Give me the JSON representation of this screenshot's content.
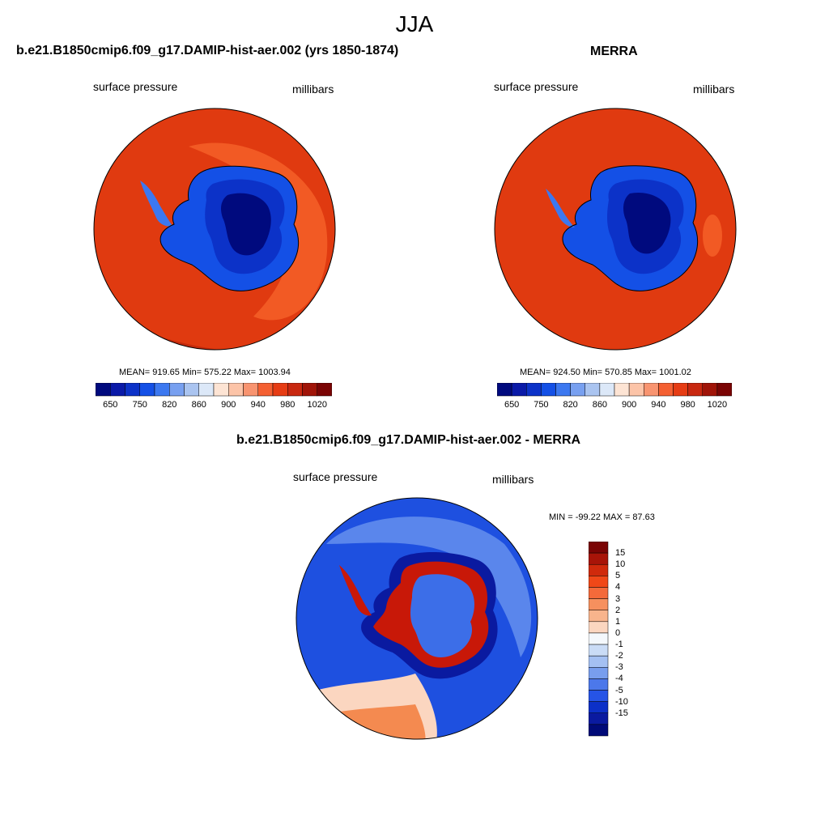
{
  "season": "JJA",
  "variable": "surface pressure",
  "units": "millibars",
  "panels": {
    "model": {
      "title": "b.e21.B1850cmip6.f09_g17.DAMIP-hist-aer.002 (yrs 1850-1874)",
      "stats": "MEAN= 919.65  Min= 575.22  Max= 1003.94"
    },
    "obs": {
      "title": "MERRA",
      "stats": "MEAN= 924.50  Min= 570.85  Max= 1001.02"
    },
    "diff": {
      "title": "b.e21.B1850cmip6.f09_g17.DAMIP-hist-aer.002 - MERRA",
      "stats": "MIN = -99.22 MAX =  87.63"
    }
  },
  "abs_colorbar": {
    "colors": [
      "#000a7e",
      "#0a1aa8",
      "#0c32c8",
      "#1450e6",
      "#3c78f0",
      "#78a0f0",
      "#aac4f0",
      "#dce8f8",
      "#fde4d4",
      "#fcc4a8",
      "#f89470",
      "#f46032",
      "#e63c14",
      "#c82810",
      "#a01408",
      "#7a0404"
    ],
    "tick_labels": [
      "650",
      "750",
      "820",
      "860",
      "900",
      "940",
      "980",
      "1020"
    ]
  },
  "diff_colorbar": {
    "colors": [
      "#7a0404",
      "#a81408",
      "#d02a0c",
      "#f04818",
      "#f46a3a",
      "#f6905e",
      "#f8b48c",
      "#fbd6c0",
      "#f4f8fc",
      "#cadcf6",
      "#a4c0f2",
      "#789eee",
      "#4c78ea",
      "#2654e6",
      "#0c30c8",
      "#0a1aa0",
      "#000a78"
    ],
    "tick_labels": [
      "15",
      "10",
      "5",
      "4",
      "3",
      "2",
      "1",
      "0",
      "-1",
      "-2",
      "-3",
      "-4",
      "-5",
      "-10",
      "-15"
    ]
  },
  "map_colors": {
    "ocean_deep": "#e03a10",
    "ocean_light": "#f25a24",
    "ocean_dark": "#c42a0c",
    "ice_outer": "#1450e6",
    "ice_inner": "#0c32c8",
    "ice_core": "#000a7e",
    "diff_ocean": "#1e50e0",
    "diff_light": "#8cb0f0",
    "diff_pos": "#f48a50",
    "diff_red": "#c81808"
  }
}
